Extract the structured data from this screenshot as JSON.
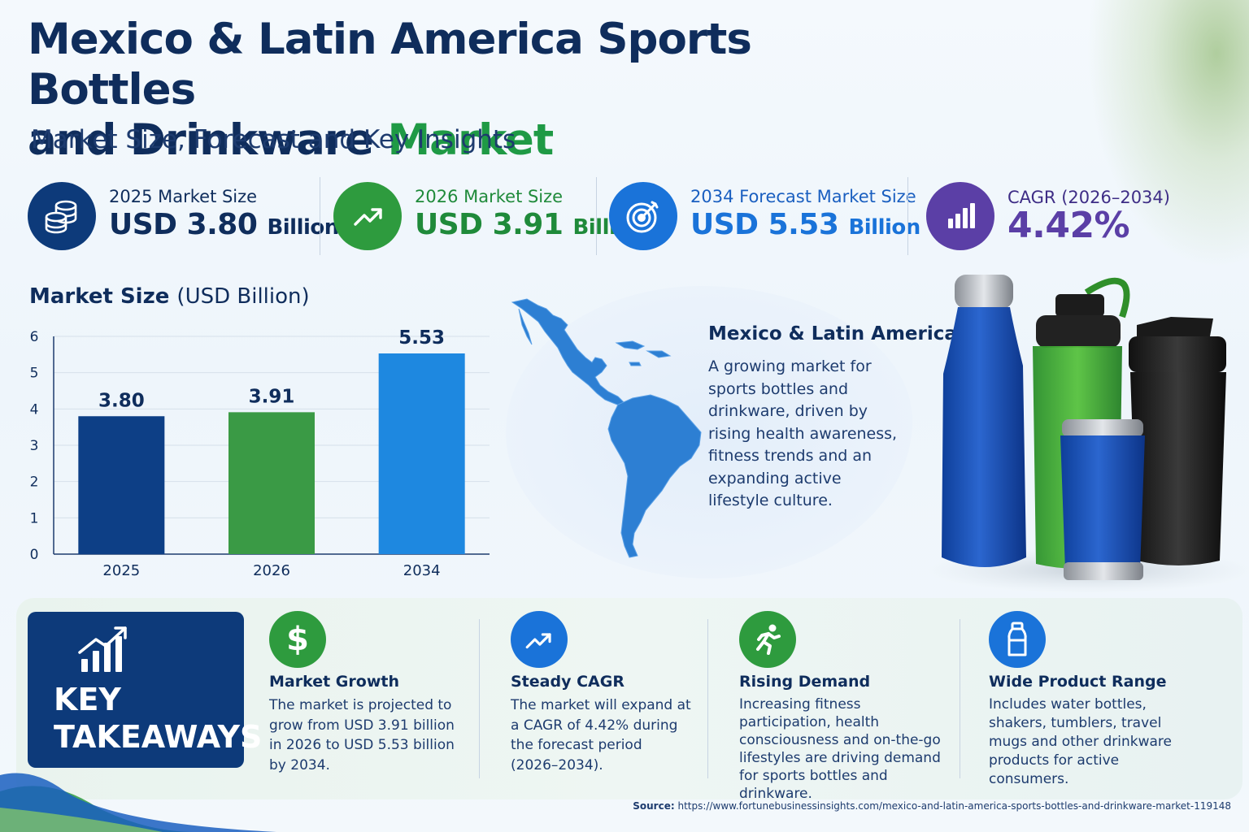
{
  "header": {
    "title_line1": "Mexico & Latin America Sports Bottles",
    "title_line2": "and Drinkware",
    "title_accent": "Market",
    "subtitle": "Market Size, Forecast and Key Insights"
  },
  "stats": [
    {
      "label": "2025 Market Size",
      "value": "USD 3.80",
      "unit": "Billion",
      "icon": "coins-stack-icon",
      "color": "#0d3a7a"
    },
    {
      "label": "2026 Market Size",
      "value": "USD 3.91",
      "unit": "Billion",
      "icon": "trend-up-icon",
      "color": "#2e9b3e"
    },
    {
      "label": "2034 Forecast Market Size",
      "value": "USD 5.53",
      "unit": "Billion",
      "icon": "target-icon",
      "color": "#1a73d9"
    },
    {
      "label": "CAGR (2026–2034)",
      "value": "4.42%",
      "unit": "",
      "icon": "bar-chart-icon",
      "color": "#5b3fa6"
    }
  ],
  "chart_title": {
    "bold": "Market Size",
    "normal": "(USD Billion)"
  },
  "chart_data": {
    "type": "bar",
    "categories": [
      "2025",
      "2026",
      "2034"
    ],
    "values": [
      3.8,
      3.91,
      5.53
    ],
    "value_labels": [
      "3.80",
      "3.91",
      "5.53"
    ],
    "colors": [
      "#0d3f86",
      "#3a9a45",
      "#1e88e0"
    ],
    "ylim": [
      0,
      6
    ],
    "yticks": [
      "0",
      "1",
      "2",
      "3",
      "4",
      "5",
      "6"
    ],
    "grid": true,
    "title": "Market Size (USD Billion)",
    "xlabel": "",
    "ylabel": ""
  },
  "region": {
    "title": "Mexico & Latin America",
    "text": "A growing market for sports bottles and drinkware, driven by rising health awareness, fitness trends and an expanding active lifestyle culture."
  },
  "key_takeaways": {
    "label_line1": "KEY",
    "label_line2": "TAKEAWAYS",
    "items": [
      {
        "title": "Market Growth",
        "text": "The market is projected to grow from USD 3.91 billion in 2026 to USD 5.53 billion by 2034.",
        "icon": "dollar-icon",
        "color": "#2e9b3e"
      },
      {
        "title": "Steady CAGR",
        "text": "The market will expand at a CAGR of 4.42% during the forecast period (2026–2034).",
        "icon": "trend-up-icon",
        "color": "#1a73d9"
      },
      {
        "title": "Rising Demand",
        "text": "Increasing fitness participation, health consciousness and on-the-go lifestyles are driving demand for sports bottles and drinkware.",
        "icon": "runner-icon",
        "color": "#2e9b3e"
      },
      {
        "title": "Wide Product Range",
        "text": "Includes water bottles, shakers, tumblers, travel mugs and other drinkware products for active consumers.",
        "icon": "bottle-icon",
        "color": "#1a73d9"
      }
    ]
  },
  "source": {
    "label": "Source:",
    "url": "https://www.fortunebusinessinsights.com/mexico-and-latin-america-sports-bottles-and-drinkware-market-119148"
  }
}
